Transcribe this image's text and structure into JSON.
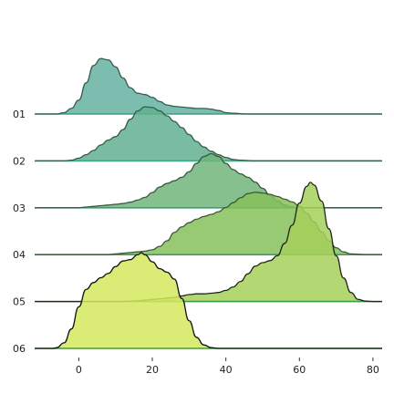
{
  "chart_data": {
    "type": "ridgeline",
    "title": "",
    "xlabel": "",
    "ylabel": "",
    "xlim": [
      -12,
      82.5
    ],
    "x_ticks": [
      0,
      20,
      40,
      60,
      80
    ],
    "x_tick_labels": [
      "0",
      "20",
      "40",
      "60",
      "80"
    ],
    "grid": false,
    "legend": "none",
    "ridges": [
      {
        "label": "01",
        "fill": "#66b2a2",
        "baseline_color": "#3e9e86",
        "edge_color": "#355e52",
        "points": [
          [
            -12,
            0
          ],
          [
            -6,
            0
          ],
          [
            -4,
            0.02
          ],
          [
            -2,
            0.08
          ],
          [
            0,
            0.2
          ],
          [
            2,
            0.45
          ],
          [
            4,
            0.7
          ],
          [
            6,
            0.8
          ],
          [
            8,
            0.78
          ],
          [
            10,
            0.68
          ],
          [
            12,
            0.52
          ],
          [
            14,
            0.38
          ],
          [
            16,
            0.3
          ],
          [
            18,
            0.28
          ],
          [
            20,
            0.24
          ],
          [
            22,
            0.18
          ],
          [
            24,
            0.13
          ],
          [
            26,
            0.11
          ],
          [
            28,
            0.1
          ],
          [
            30,
            0.09
          ],
          [
            32,
            0.08
          ],
          [
            34,
            0.08
          ],
          [
            36,
            0.07
          ],
          [
            38,
            0.05
          ],
          [
            40,
            0.02
          ],
          [
            42,
            0.01
          ],
          [
            46,
            0
          ],
          [
            82.5,
            0
          ]
        ]
      },
      {
        "label": "02",
        "fill": "#62b090",
        "baseline_color": "#3ea886",
        "edge_color": "#355e4a",
        "points": [
          [
            -12,
            0
          ],
          [
            -4,
            0
          ],
          [
            -2,
            0.01
          ],
          [
            0,
            0.04
          ],
          [
            2,
            0.09
          ],
          [
            4,
            0.15
          ],
          [
            6,
            0.23
          ],
          [
            8,
            0.3
          ],
          [
            10,
            0.35
          ],
          [
            12,
            0.45
          ],
          [
            14,
            0.6
          ],
          [
            16,
            0.72
          ],
          [
            18,
            0.78
          ],
          [
            20,
            0.77
          ],
          [
            22,
            0.72
          ],
          [
            24,
            0.65
          ],
          [
            26,
            0.57
          ],
          [
            28,
            0.48
          ],
          [
            30,
            0.38
          ],
          [
            32,
            0.28
          ],
          [
            34,
            0.2
          ],
          [
            36,
            0.14
          ],
          [
            38,
            0.09
          ],
          [
            40,
            0.05
          ],
          [
            42,
            0.02
          ],
          [
            44,
            0.01
          ],
          [
            48,
            0
          ],
          [
            82.5,
            0
          ]
        ]
      },
      {
        "label": "03",
        "fill": "#70b57a",
        "baseline_color": "#3e9e72",
        "edge_color": "#385a3e",
        "points": [
          [
            -12,
            0
          ],
          [
            0,
            0
          ],
          [
            2,
            0.01
          ],
          [
            4,
            0.02
          ],
          [
            6,
            0.03
          ],
          [
            8,
            0.04
          ],
          [
            10,
            0.05
          ],
          [
            12,
            0.06
          ],
          [
            14,
            0.08
          ],
          [
            16,
            0.11
          ],
          [
            18,
            0.15
          ],
          [
            20,
            0.22
          ],
          [
            22,
            0.3
          ],
          [
            24,
            0.35
          ],
          [
            26,
            0.39
          ],
          [
            28,
            0.44
          ],
          [
            30,
            0.52
          ],
          [
            32,
            0.64
          ],
          [
            34,
            0.74
          ],
          [
            36,
            0.78
          ],
          [
            38,
            0.74
          ],
          [
            40,
            0.64
          ],
          [
            42,
            0.55
          ],
          [
            44,
            0.49
          ],
          [
            46,
            0.44
          ],
          [
            48,
            0.37
          ],
          [
            50,
            0.28
          ],
          [
            52,
            0.18
          ],
          [
            54,
            0.1
          ],
          [
            56,
            0.04
          ],
          [
            58,
            0.01
          ],
          [
            62,
            0
          ],
          [
            82.5,
            0
          ]
        ]
      },
      {
        "label": "04",
        "fill": "#86c05a",
        "baseline_color": "#3e9e60",
        "edge_color": "#3e5a32",
        "points": [
          [
            -12,
            0
          ],
          [
            8,
            0
          ],
          [
            10,
            0.01
          ],
          [
            12,
            0.02
          ],
          [
            14,
            0.03
          ],
          [
            16,
            0.04
          ],
          [
            18,
            0.05
          ],
          [
            20,
            0.07
          ],
          [
            22,
            0.12
          ],
          [
            24,
            0.2
          ],
          [
            26,
            0.32
          ],
          [
            28,
            0.4
          ],
          [
            30,
            0.46
          ],
          [
            32,
            0.51
          ],
          [
            34,
            0.55
          ],
          [
            36,
            0.58
          ],
          [
            38,
            0.62
          ],
          [
            40,
            0.68
          ],
          [
            42,
            0.75
          ],
          [
            44,
            0.82
          ],
          [
            46,
            0.88
          ],
          [
            48,
            0.9
          ],
          [
            50,
            0.89
          ],
          [
            52,
            0.87
          ],
          [
            54,
            0.84
          ],
          [
            56,
            0.8
          ],
          [
            58,
            0.76
          ],
          [
            60,
            0.7
          ],
          [
            62,
            0.6
          ],
          [
            64,
            0.47
          ],
          [
            66,
            0.33
          ],
          [
            68,
            0.2
          ],
          [
            70,
            0.1
          ],
          [
            72,
            0.04
          ],
          [
            74,
            0.01
          ],
          [
            78,
            0
          ],
          [
            82.5,
            0
          ]
        ]
      },
      {
        "label": "05",
        "fill": "#a6d05a",
        "baseline_color": "#3e9e48",
        "edge_color": "#1e2a1a",
        "points": [
          [
            -12,
            0
          ],
          [
            12,
            0
          ],
          [
            14,
            0.005
          ],
          [
            16,
            0.01
          ],
          [
            18,
            0.02
          ],
          [
            20,
            0.03
          ],
          [
            22,
            0.04
          ],
          [
            24,
            0.05
          ],
          [
            26,
            0.06
          ],
          [
            28,
            0.08
          ],
          [
            30,
            0.1
          ],
          [
            32,
            0.11
          ],
          [
            34,
            0.11
          ],
          [
            36,
            0.12
          ],
          [
            38,
            0.13
          ],
          [
            40,
            0.16
          ],
          [
            42,
            0.21
          ],
          [
            44,
            0.29
          ],
          [
            46,
            0.4
          ],
          [
            48,
            0.51
          ],
          [
            50,
            0.56
          ],
          [
            52,
            0.59
          ],
          [
            54,
            0.66
          ],
          [
            56,
            0.84
          ],
          [
            58,
            1.1
          ],
          [
            60,
            1.42
          ],
          [
            62,
            1.66
          ],
          [
            63,
            1.72
          ],
          [
            64,
            1.68
          ],
          [
            66,
            1.45
          ],
          [
            68,
            1.05
          ],
          [
            70,
            0.66
          ],
          [
            72,
            0.34
          ],
          [
            74,
            0.13
          ],
          [
            76,
            0.03
          ],
          [
            78,
            0.005
          ],
          [
            80,
            0
          ],
          [
            82.5,
            0
          ]
        ]
      },
      {
        "label": "06",
        "fill": "#d4e85e",
        "baseline_color": "#3e9e3e",
        "edge_color": "#111111",
        "points": [
          [
            -12,
            0
          ],
          [
            -7,
            0
          ],
          [
            -6,
            0.01
          ],
          [
            -4,
            0.08
          ],
          [
            -2,
            0.28
          ],
          [
            0,
            0.6
          ],
          [
            2,
            0.85
          ],
          [
            4,
            0.95
          ],
          [
            6,
            1.02
          ],
          [
            8,
            1.08
          ],
          [
            10,
            1.18
          ],
          [
            12,
            1.26
          ],
          [
            14,
            1.28
          ],
          [
            16,
            1.35
          ],
          [
            17,
            1.38
          ],
          [
            18,
            1.35
          ],
          [
            20,
            1.25
          ],
          [
            22,
            1.15
          ],
          [
            24,
            1.1
          ],
          [
            26,
            1.0
          ],
          [
            28,
            0.72
          ],
          [
            30,
            0.4
          ],
          [
            32,
            0.16
          ],
          [
            34,
            0.05
          ],
          [
            36,
            0.01
          ],
          [
            38,
            0
          ],
          [
            82.5,
            0
          ]
        ]
      }
    ]
  }
}
